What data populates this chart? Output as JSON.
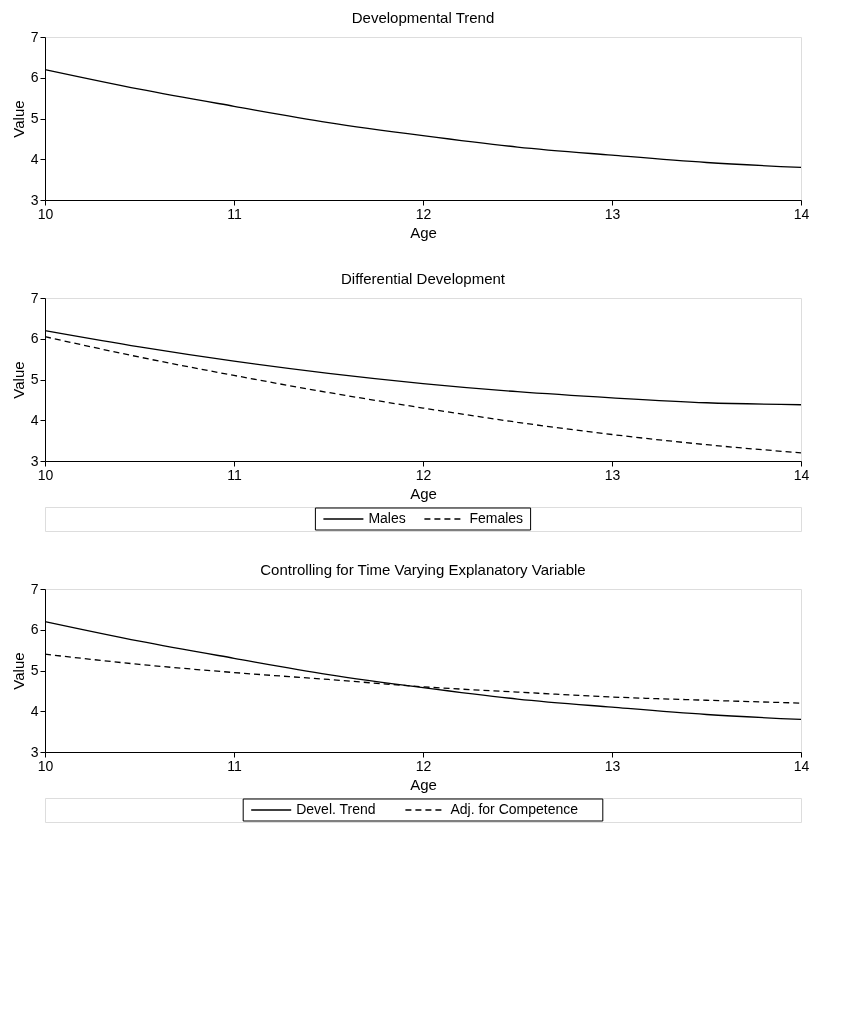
{
  "chart_data": [
    {
      "type": "line",
      "title": "Developmental Trend",
      "xlabel": "Age",
      "ylabel": "Value",
      "x": [
        10,
        10.5,
        11,
        11.5,
        12,
        12.5,
        13,
        13.5,
        14
      ],
      "xlim": [
        10,
        14
      ],
      "xticks": [
        10,
        11,
        12,
        13,
        14
      ],
      "ylim": [
        3,
        7
      ],
      "yticks": [
        3,
        4,
        5,
        6,
        7
      ],
      "grid": false,
      "marker": "none",
      "series": [
        {
          "color": "#000000",
          "line_style": "solid",
          "values": [
            6.2,
            5.72,
            5.3,
            4.9,
            4.58,
            4.3,
            4.1,
            3.92,
            3.8
          ]
        }
      ]
    },
    {
      "type": "line",
      "title": "Differential Development",
      "xlabel": "Age",
      "ylabel": "Value",
      "x": [
        10,
        10.5,
        11,
        11.5,
        12,
        12.5,
        13,
        13.5,
        14
      ],
      "xlim": [
        10,
        14
      ],
      "xticks": [
        10,
        11,
        12,
        13,
        14
      ],
      "ylim": [
        3,
        7
      ],
      "yticks": [
        3,
        4,
        5,
        6,
        7
      ],
      "grid": false,
      "legend": "bottom",
      "marker": "none",
      "series": [
        {
          "name": "Males",
          "color": "#000000",
          "line_style": "solid",
          "values": [
            6.2,
            5.8,
            5.45,
            5.15,
            4.9,
            4.7,
            4.55,
            4.43,
            4.38
          ]
        },
        {
          "name": "Females",
          "color": "#000000",
          "line_style": "dashed",
          "values": [
            6.05,
            5.55,
            5.1,
            4.68,
            4.3,
            3.95,
            3.65,
            3.4,
            3.2
          ]
        }
      ]
    },
    {
      "type": "line",
      "title": "Controlling for Time Varying Explanatory Variable",
      "xlabel": "Age",
      "ylabel": "Value",
      "x": [
        10,
        10.5,
        11,
        11.5,
        12,
        12.5,
        13,
        13.5,
        14
      ],
      "xlim": [
        10,
        14
      ],
      "xticks": [
        10,
        11,
        12,
        13,
        14
      ],
      "ylim": [
        3,
        7
      ],
      "yticks": [
        3,
        4,
        5,
        6,
        7
      ],
      "grid": false,
      "legend": "bottom",
      "marker": "none",
      "series": [
        {
          "name": "Devel. Trend",
          "color": "#000000",
          "line_style": "solid",
          "values": [
            6.2,
            5.72,
            5.3,
            4.9,
            4.58,
            4.3,
            4.1,
            3.92,
            3.8
          ]
        },
        {
          "name": "Adj. for Competence",
          "color": "#000000",
          "line_style": "dashed",
          "values": [
            5.4,
            5.15,
            4.95,
            4.78,
            4.6,
            4.47,
            4.35,
            4.27,
            4.2
          ]
        }
      ]
    }
  ]
}
